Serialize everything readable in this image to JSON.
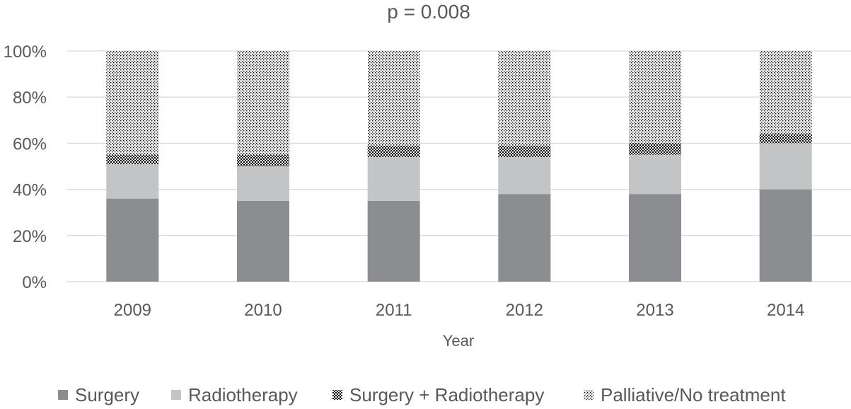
{
  "chart_data": {
    "type": "bar",
    "stacked": true,
    "title": "p = 0.008",
    "xlabel": "Year",
    "ylabel": "",
    "ylim": [
      0,
      100
    ],
    "y_ticks": [
      "0%",
      "20%",
      "40%",
      "60%",
      "80%",
      "100%"
    ],
    "categories": [
      "2009",
      "2010",
      "2011",
      "2012",
      "2013",
      "2014"
    ],
    "series": [
      {
        "name": "Surgery",
        "values": [
          36,
          35,
          35,
          38,
          38,
          40
        ],
        "color": "#8c8d90",
        "pattern": "solid"
      },
      {
        "name": "Radiotherapy",
        "values": [
          15,
          15,
          19,
          16,
          17,
          20
        ],
        "color": "#c3c4c6",
        "pattern": "solid"
      },
      {
        "name": "Surgery + Radiotherapy",
        "values": [
          4,
          5,
          5,
          5,
          5,
          4
        ],
        "color": "#000000",
        "pattern": "checker"
      },
      {
        "name": "Palliative/No treatment",
        "values": [
          45,
          45,
          41,
          41,
          40,
          36
        ],
        "color": "#000000",
        "pattern": "dots"
      }
    ],
    "grid": true,
    "legend_position": "bottom"
  }
}
